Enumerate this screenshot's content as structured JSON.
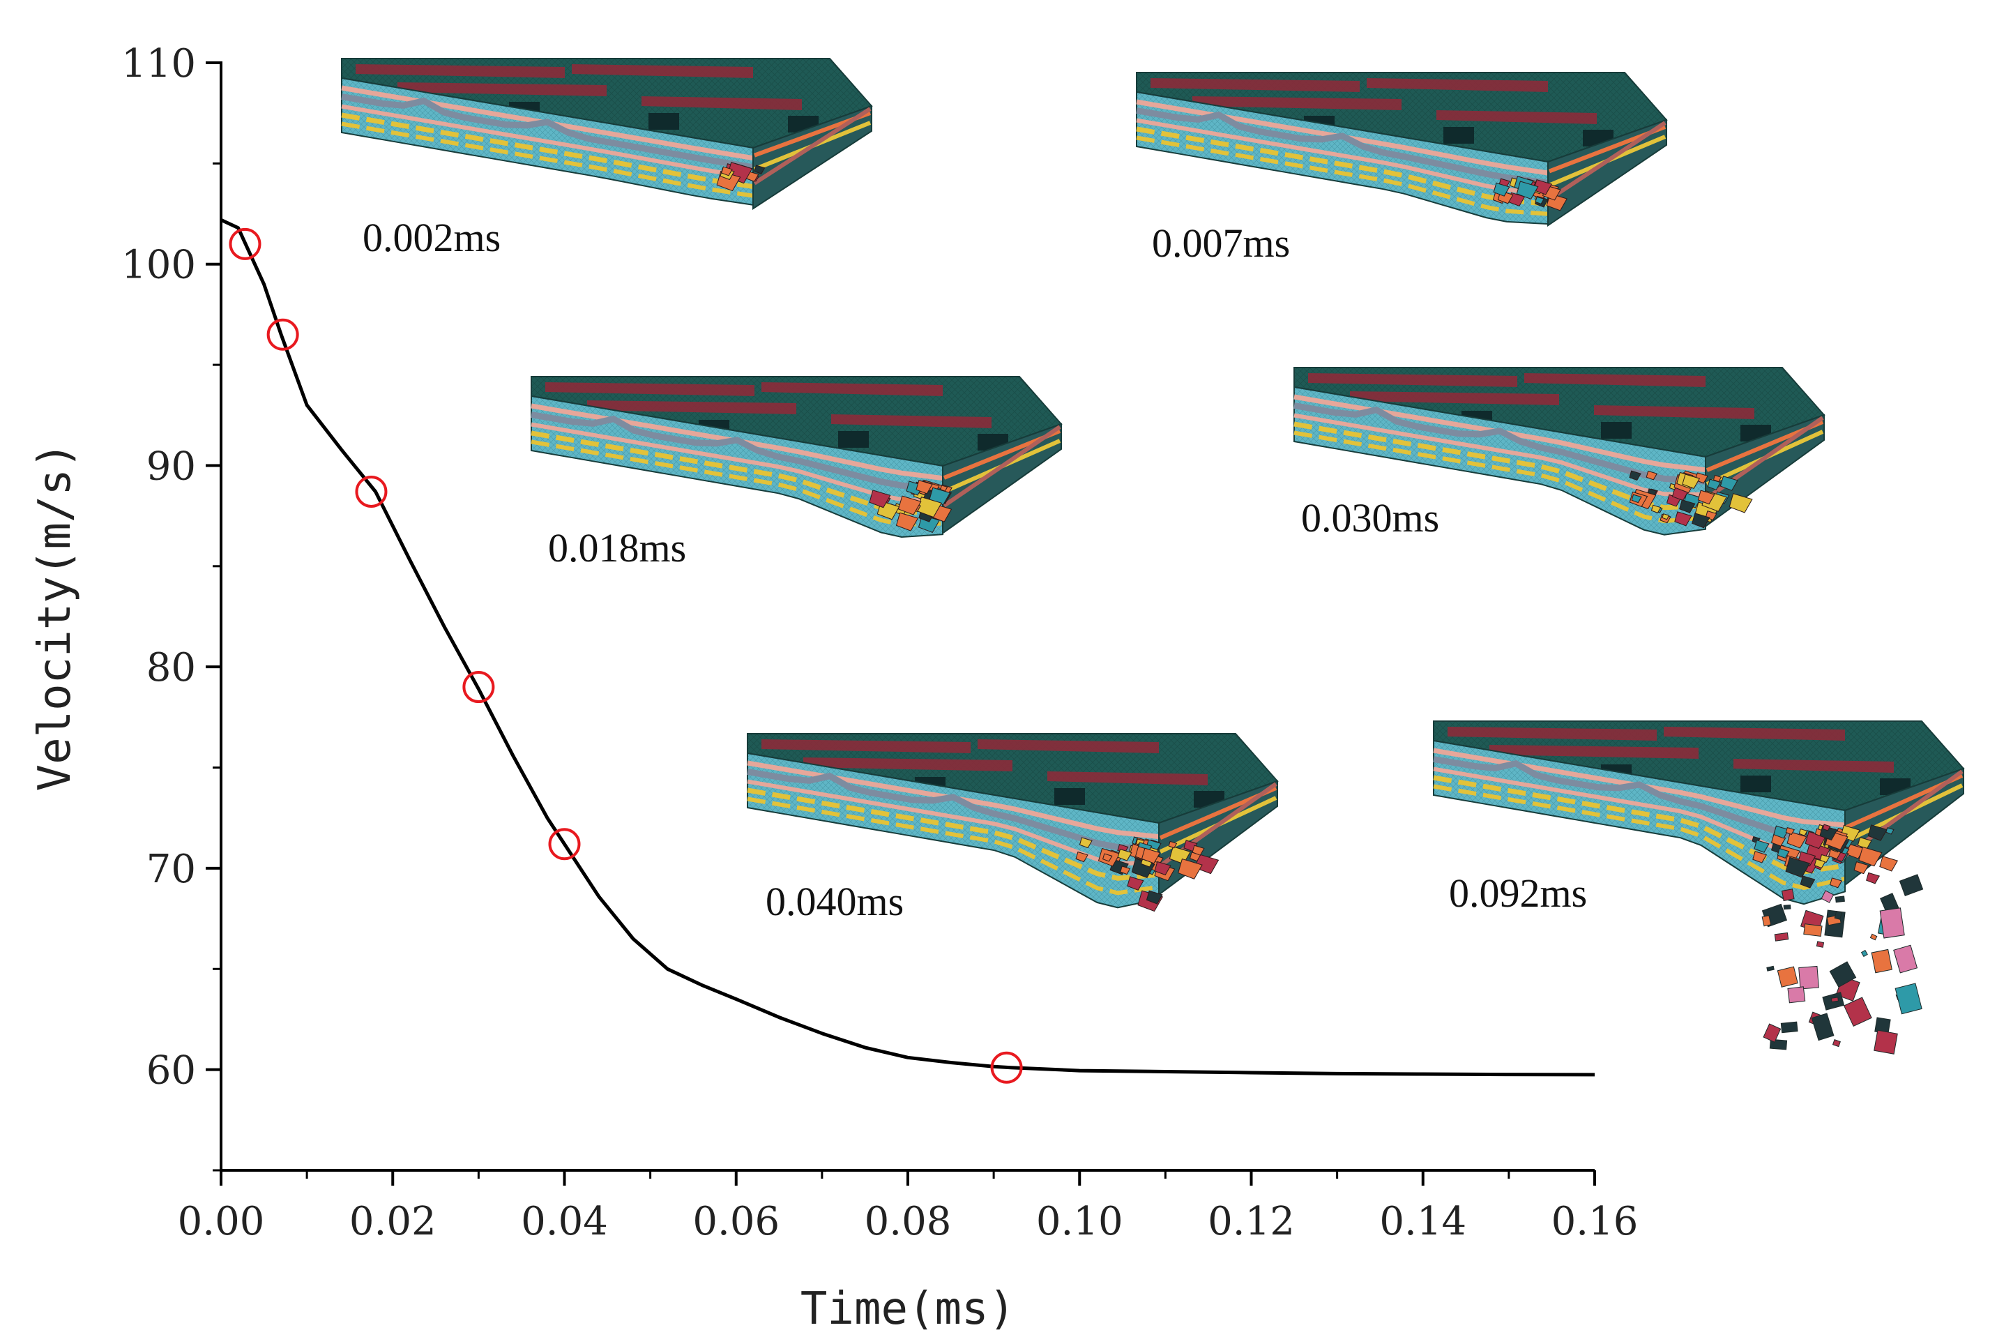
{
  "chart_data": {
    "type": "line",
    "title": "",
    "xlabel": "Time(ms)",
    "ylabel": "Velocity(m/s)",
    "xlim": [
      0,
      0.16
    ],
    "ylim": [
      55,
      110
    ],
    "x_ticks": [
      "0.00",
      "0.02",
      "0.04",
      "0.06",
      "0.08",
      "0.10",
      "0.12",
      "0.14",
      "0.16"
    ],
    "y_ticks": [
      "60",
      "70",
      "80",
      "90",
      "100",
      "110"
    ],
    "grid": false,
    "legend": "none",
    "series": [
      {
        "color": "#000000",
        "x": [
          0.0,
          0.002,
          0.005,
          0.007,
          0.01,
          0.014,
          0.018,
          0.022,
          0.026,
          0.03,
          0.034,
          0.038,
          0.04,
          0.044,
          0.048,
          0.052,
          0.056,
          0.06,
          0.065,
          0.07,
          0.075,
          0.08,
          0.085,
          0.09,
          0.092,
          0.1,
          0.11,
          0.12,
          0.13,
          0.14,
          0.15,
          0.16
        ],
        "y": [
          102.2,
          101.8,
          99.0,
          96.5,
          93.0,
          90.8,
          88.7,
          85.3,
          82.0,
          78.9,
          75.6,
          72.5,
          71.2,
          68.6,
          66.5,
          65.0,
          64.2,
          63.5,
          62.6,
          61.8,
          61.1,
          60.6,
          60.35,
          60.15,
          60.1,
          59.95,
          59.9,
          59.85,
          59.8,
          59.78,
          59.76,
          59.75
        ]
      }
    ],
    "markers": {
      "color": "#e8191f",
      "x": [
        0.0028,
        0.0072,
        0.0175,
        0.03,
        0.04,
        0.0915
      ],
      "y": [
        101.0,
        96.5,
        88.7,
        79.0,
        71.2,
        60.1
      ]
    },
    "snapshots": [
      {
        "label": "0.002ms",
        "damage": 0.05
      },
      {
        "label": "0.007ms",
        "damage": 0.25
      },
      {
        "label": "0.018ms",
        "damage": 0.5
      },
      {
        "label": "0.030ms",
        "damage": 0.65
      },
      {
        "label": "0.040ms",
        "damage": 0.8
      },
      {
        "label": "0.092ms",
        "damage": 1.0
      }
    ]
  },
  "colors": {
    "slab_top": "#1f5a55",
    "slab_top_dark": "#17443f",
    "rebar_strip": "#8b2b3a",
    "side_base": "#5fb6c6",
    "layer_pink": "#e6a79a",
    "layer_gray": "#7d8ca0",
    "layer_yellow": "#e2c23a",
    "edge_dark": "#173c3a",
    "damage_orange": "#e8733f",
    "damage_red": "#b3324a",
    "debris_teal": "#2e9aa8",
    "debris_pink": "#d97aa8"
  }
}
